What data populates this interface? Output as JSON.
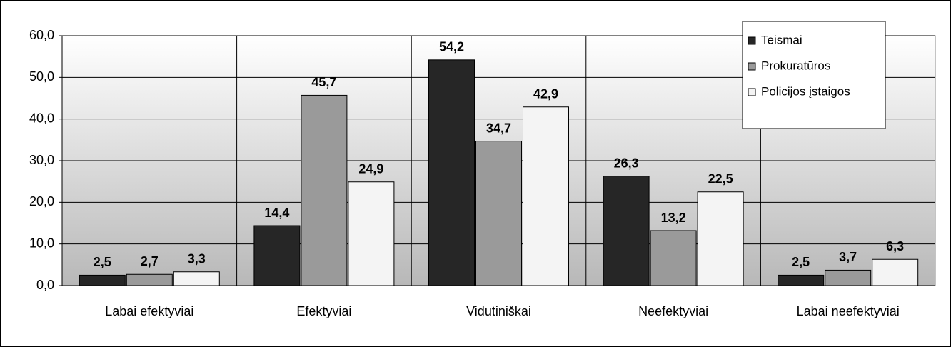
{
  "chart_data": {
    "type": "bar",
    "categories": [
      "Labai efektyviai",
      "Efektyviai",
      "Vidutiniškai",
      "Neefektyviai",
      "Labai neefektyviai"
    ],
    "series": [
      {
        "name": "Teismai",
        "color": "#262626",
        "values": [
          2.5,
          14.4,
          54.2,
          26.3,
          2.5
        ],
        "value_labels": [
          "2,5",
          "14,4",
          "54,2",
          "26,3",
          "2,5"
        ]
      },
      {
        "name": "Prokuratūros",
        "color": "#9a9a9a",
        "values": [
          2.7,
          45.7,
          34.7,
          13.2,
          3.7
        ],
        "value_labels": [
          "2,7",
          "45,7",
          "34,7",
          "13,2",
          "3,7"
        ]
      },
      {
        "name": "Policijos įstaigos",
        "color": "#f4f4f4",
        "values": [
          3.3,
          24.9,
          42.9,
          22.5,
          6.3
        ],
        "value_labels": [
          "3,3",
          "24,9",
          "42,9",
          "22,5",
          "6,3"
        ]
      }
    ],
    "ylim": [
      0,
      60
    ],
    "yticks": [
      {
        "value": 0,
        "label": "0,0"
      },
      {
        "value": 10,
        "label": "10,0"
      },
      {
        "value": 20,
        "label": "20,0"
      },
      {
        "value": 30,
        "label": "30,0"
      },
      {
        "value": 40,
        "label": "40,0"
      },
      {
        "value": 50,
        "label": "50,0"
      },
      {
        "value": 60,
        "label": "60,0"
      }
    ],
    "grid": true,
    "legend": "top-right"
  }
}
